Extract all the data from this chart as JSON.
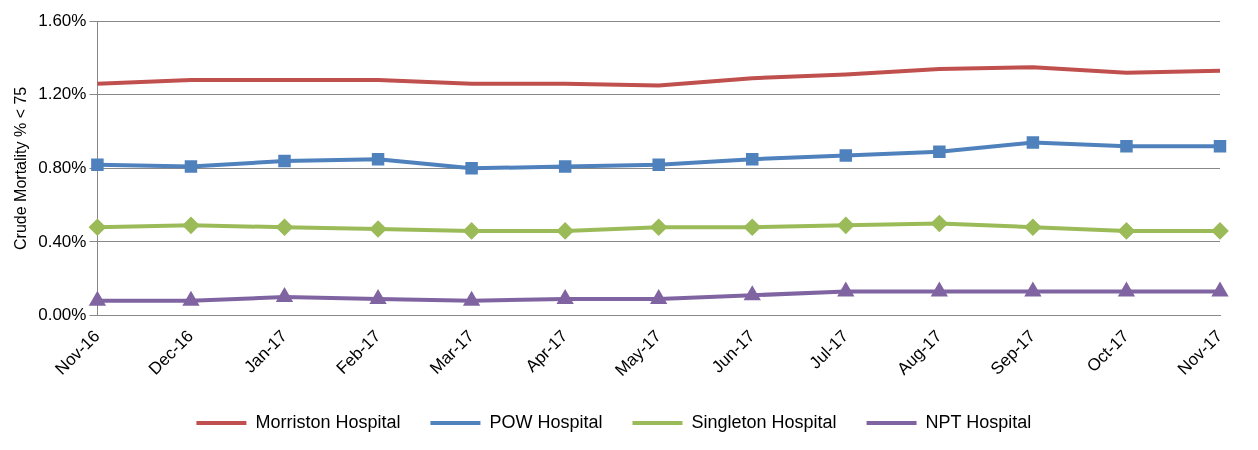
{
  "chart_data": {
    "type": "line",
    "ylabel": "Crude Mortality % < 75",
    "categories": [
      "Nov-16",
      "Dec-16",
      "Jan-17",
      "Feb-17",
      "Mar-17",
      "Apr-17",
      "May-17",
      "Jun-17",
      "Jul-17",
      "Aug-17",
      "Sep-17",
      "Oct-17",
      "Nov-17"
    ],
    "series": [
      {
        "name": "Morriston Hospital",
        "color": "#c0504d",
        "marker": "none",
        "values": [
          1.26,
          1.28,
          1.28,
          1.28,
          1.26,
          1.26,
          1.25,
          1.29,
          1.31,
          1.34,
          1.35,
          1.32,
          1.33
        ]
      },
      {
        "name": "POW Hospital",
        "color": "#4f81bd",
        "marker": "square",
        "values": [
          0.82,
          0.81,
          0.84,
          0.85,
          0.8,
          0.81,
          0.82,
          0.85,
          0.87,
          0.89,
          0.94,
          0.92,
          0.92
        ]
      },
      {
        "name": "Singleton Hospital",
        "color": "#9bbb59",
        "marker": "diamond",
        "values": [
          0.48,
          0.49,
          0.48,
          0.47,
          0.46,
          0.46,
          0.48,
          0.48,
          0.49,
          0.5,
          0.48,
          0.46,
          0.46
        ]
      },
      {
        "name": "NPT Hospital",
        "color": "#8064a2",
        "marker": "triangle",
        "values": [
          0.08,
          0.08,
          0.1,
          0.09,
          0.08,
          0.09,
          0.09,
          0.11,
          0.13,
          0.13,
          0.13,
          0.13,
          0.13
        ]
      }
    ],
    "ylim": [
      0,
      1.6
    ],
    "yticks": [
      {
        "value": 0,
        "label": "0.00%"
      },
      {
        "value": 0.4,
        "label": "0.40%"
      },
      {
        "value": 0.8,
        "label": "0.80%"
      },
      {
        "value": 1.2,
        "label": "1.20%"
      },
      {
        "value": 1.6,
        "label": "1.60%"
      }
    ],
    "grid": "y",
    "legend": "bottom"
  }
}
